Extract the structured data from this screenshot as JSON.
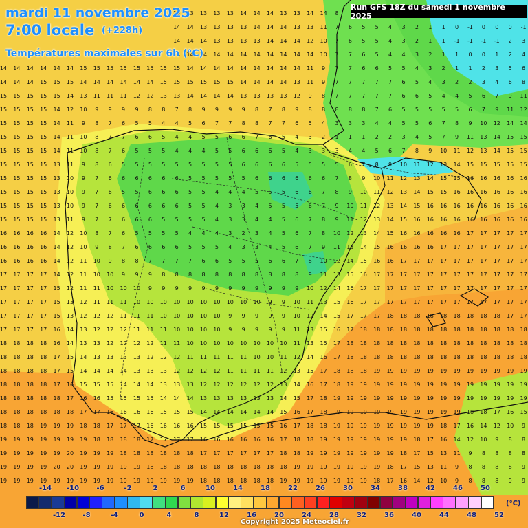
{
  "header": {
    "date": "mardi 11 novembre 2025",
    "time": "7:00 locale",
    "offset": "(+228h)",
    "parameter": "Températures maximales sur 6h (°C)",
    "run": "Run GFS 18Z du samedi 1 novembre 2025"
  },
  "legend": {
    "unit": "(°C)",
    "top_labels": [
      "-14",
      "-10",
      "-6",
      "-2",
      "2",
      "6",
      "10",
      "14",
      "18",
      "22",
      "26",
      "30",
      "34",
      "38",
      "42",
      "46",
      "50"
    ],
    "bottom_labels": [
      "-12",
      "-8",
      "-4",
      "0",
      "4",
      "8",
      "12",
      "16",
      "20",
      "24",
      "28",
      "32",
      "36",
      "40",
      "44",
      "48",
      "52"
    ],
    "colors": [
      "#0a1a4a",
      "#122a6e",
      "#1a3a96",
      "#0000a8",
      "#0000d8",
      "#2020ff",
      "#2068ff",
      "#1e8fff",
      "#30b8f0",
      "#50dcf0",
      "#40e080",
      "#30d850",
      "#80e040",
      "#b0e830",
      "#d8f020",
      "#ffff30",
      "#fff080",
      "#ffe060",
      "#ffc840",
      "#ffa830",
      "#ff8820",
      "#ff6020",
      "#ff4020",
      "#ff2020",
      "#e00000",
      "#c00010",
      "#a00010",
      "#800000",
      "#900040",
      "#a00080",
      "#c000c0",
      "#e020e0",
      "#ff40ff",
      "#ff70ff",
      "#ffa0ff",
      "#ffd0ff",
      "#ffffff"
    ]
  },
  "grid_rows": [
    [
      "14",
      "14",
      "14",
      "14",
      "14",
      "14",
      "14",
      "14",
      "14",
      "14",
      "14",
      "14",
      "14",
      "13",
      "13",
      "13",
      "13",
      "13",
      "14",
      "14",
      "14",
      "13",
      "13",
      "14",
      "14",
      "8",
      "6",
      "6",
      "5",
      "4",
      "4",
      "3",
      "2",
      "1",
      "0",
      "1",
      "1",
      "0",
      "1",
      "1"
    ],
    [
      "14",
      "14",
      "14",
      "14",
      "14",
      "14",
      "14",
      "14",
      "14",
      "14",
      "14",
      "14",
      "14",
      "14",
      "14",
      "13",
      "13",
      "13",
      "13",
      "14",
      "14",
      "14",
      "13",
      "13",
      "11",
      "7",
      "6",
      "5",
      "5",
      "4",
      "3",
      "2",
      "1",
      "1",
      "0",
      "-1",
      "0",
      "0",
      "0",
      "-1"
    ],
    [
      "14",
      "14",
      "14",
      "14",
      "14",
      "14",
      "14",
      "14",
      "14",
      "14",
      "14",
      "14",
      "14",
      "14",
      "14",
      "14",
      "13",
      "13",
      "13",
      "13",
      "14",
      "14",
      "14",
      "12",
      "10",
      "7",
      "6",
      "5",
      "5",
      "4",
      "3",
      "2",
      "1",
      "1",
      "-1",
      "-1",
      "-1",
      "-1",
      "2",
      "3"
    ],
    [
      "14",
      "14",
      "14",
      "14",
      "14",
      "14",
      "14",
      "14",
      "14",
      "14",
      "15",
      "15",
      "14",
      "14",
      "14",
      "14",
      "14",
      "14",
      "14",
      "14",
      "14",
      "14",
      "14",
      "14",
      "10",
      "7",
      "7",
      "6",
      "5",
      "4",
      "4",
      "3",
      "2",
      "1",
      "1",
      "0",
      "0",
      "1",
      "2",
      "4"
    ],
    [
      "14",
      "14",
      "14",
      "14",
      "14",
      "14",
      "15",
      "15",
      "15",
      "15",
      "15",
      "15",
      "15",
      "15",
      "14",
      "14",
      "14",
      "14",
      "14",
      "14",
      "14",
      "14",
      "14",
      "11",
      "9",
      "7",
      "7",
      "6",
      "6",
      "5",
      "5",
      "4",
      "3",
      "2",
      "1",
      "1",
      "2",
      "3",
      "5",
      "6"
    ],
    [
      "14",
      "14",
      "14",
      "15",
      "15",
      "15",
      "14",
      "14",
      "14",
      "14",
      "14",
      "14",
      "15",
      "15",
      "15",
      "15",
      "15",
      "15",
      "14",
      "14",
      "14",
      "14",
      "13",
      "11",
      "9",
      "7",
      "7",
      "7",
      "7",
      "7",
      "6",
      "5",
      "4",
      "3",
      "2",
      "2",
      "3",
      "4",
      "6",
      "8"
    ],
    [
      "15",
      "15",
      "15",
      "15",
      "15",
      "14",
      "13",
      "11",
      "11",
      "11",
      "12",
      "12",
      "13",
      "13",
      "14",
      "14",
      "14",
      "14",
      "13",
      "13",
      "13",
      "13",
      "12",
      "9",
      "8",
      "7",
      "7",
      "7",
      "7",
      "7",
      "6",
      "6",
      "5",
      "4",
      "4",
      "5",
      "6",
      "7",
      "9",
      "11"
    ],
    [
      "15",
      "15",
      "15",
      "15",
      "14",
      "12",
      "10",
      "9",
      "9",
      "9",
      "9",
      "8",
      "8",
      "7",
      "8",
      "9",
      "9",
      "9",
      "9",
      "8",
      "7",
      "8",
      "9",
      "8",
      "8",
      "8",
      "8",
      "8",
      "7",
      "6",
      "5",
      "5",
      "5",
      "5",
      "5",
      "6",
      "7",
      "9",
      "11",
      "12"
    ],
    [
      "15",
      "15",
      "15",
      "15",
      "14",
      "11",
      "9",
      "8",
      "7",
      "6",
      "5",
      "5",
      "4",
      "4",
      "5",
      "6",
      "7",
      "7",
      "8",
      "8",
      "7",
      "7",
      "6",
      "5",
      "4",
      "3",
      "3",
      "3",
      "4",
      "4",
      "5",
      "5",
      "6",
      "7",
      "8",
      "9",
      "10",
      "12",
      "14",
      "14"
    ],
    [
      "15",
      "15",
      "15",
      "15",
      "14",
      "11",
      "10",
      "8",
      "7",
      "7",
      "6",
      "6",
      "5",
      "4",
      "4",
      "5",
      "5",
      "6",
      "6",
      "7",
      "6",
      "5",
      "4",
      "3",
      "2",
      "1",
      "1",
      "1",
      "2",
      "2",
      "3",
      "4",
      "5",
      "7",
      "9",
      "11",
      "13",
      "14",
      "15",
      "15"
    ],
    [
      "15",
      "15",
      "15",
      "15",
      "14",
      "11",
      "10",
      "8",
      "7",
      "6",
      "5",
      "5",
      "5",
      "4",
      "4",
      "4",
      "5",
      "5",
      "6",
      "6",
      "6",
      "5",
      "4",
      "3",
      "3",
      "3",
      "4",
      "4",
      "5",
      "6",
      "7",
      "8",
      "9",
      "10",
      "11",
      "12",
      "13",
      "14",
      "15",
      "15"
    ],
    [
      "15",
      "15",
      "15",
      "15",
      "13",
      "11",
      "9",
      "8",
      "6",
      "5",
      "5",
      "5",
      "5",
      "5",
      "5",
      "5",
      "5",
      "5",
      "6",
      "6",
      "6",
      "6",
      "5",
      "5",
      "5",
      "5",
      "6",
      "7",
      "8",
      "9",
      "10",
      "11",
      "12",
      "13",
      "14",
      "15",
      "15",
      "15",
      "15",
      "15"
    ],
    [
      "15",
      "15",
      "15",
      "15",
      "13",
      "10",
      "9",
      "7",
      "6",
      "6",
      "6",
      "6",
      "6",
      "6",
      "5",
      "5",
      "5",
      "5",
      "5",
      "6",
      "6",
      "6",
      "6",
      "6",
      "6",
      "7",
      "8",
      "9",
      "10",
      "11",
      "12",
      "13",
      "14",
      "15",
      "15",
      "16",
      "16",
      "16",
      "16",
      "16"
    ],
    [
      "15",
      "15",
      "15",
      "15",
      "13",
      "10",
      "9",
      "7",
      "6",
      "5",
      "5",
      "6",
      "6",
      "6",
      "5",
      "5",
      "4",
      "4",
      "4",
      "5",
      "5",
      "5",
      "6",
      "6",
      "7",
      "8",
      "9",
      "10",
      "11",
      "12",
      "13",
      "14",
      "15",
      "15",
      "16",
      "16",
      "16",
      "16",
      "16",
      "16"
    ],
    [
      "15",
      "15",
      "15",
      "15",
      "13",
      "10",
      "9",
      "7",
      "6",
      "6",
      "6",
      "6",
      "6",
      "6",
      "5",
      "5",
      "4",
      "3",
      "3",
      "4",
      "5",
      "5",
      "5",
      "6",
      "7",
      "9",
      "10",
      "11",
      "12",
      "13",
      "14",
      "15",
      "16",
      "16",
      "16",
      "16",
      "16",
      "16",
      "16",
      "16"
    ],
    [
      "15",
      "15",
      "15",
      "15",
      "13",
      "11",
      "9",
      "7",
      "7",
      "6",
      "6",
      "6",
      "5",
      "5",
      "5",
      "5",
      "4",
      "3",
      "3",
      "4",
      "4",
      "5",
      "6",
      "7",
      "8",
      "9",
      "11",
      "12",
      "13",
      "14",
      "15",
      "16",
      "16",
      "16",
      "16",
      "16",
      "16",
      "16",
      "16",
      "16"
    ],
    [
      "16",
      "16",
      "16",
      "16",
      "14",
      "12",
      "10",
      "8",
      "7",
      "6",
      "5",
      "5",
      "5",
      "5",
      "4",
      "4",
      "4",
      "3",
      "2",
      "3",
      "4",
      "5",
      "6",
      "7",
      "8",
      "10",
      "12",
      "13",
      "14",
      "15",
      "16",
      "16",
      "16",
      "16",
      "16",
      "17",
      "17",
      "17",
      "17",
      "17"
    ],
    [
      "16",
      "16",
      "16",
      "16",
      "14",
      "12",
      "10",
      "9",
      "8",
      "7",
      "6",
      "6",
      "6",
      "6",
      "5",
      "5",
      "5",
      "4",
      "3",
      "3",
      "4",
      "5",
      "6",
      "7",
      "9",
      "11",
      "13",
      "14",
      "15",
      "16",
      "16",
      "16",
      "16",
      "17",
      "17",
      "17",
      "17",
      "17",
      "17",
      "17"
    ],
    [
      "16",
      "16",
      "16",
      "16",
      "14",
      "12",
      "11",
      "10",
      "9",
      "8",
      "8",
      "7",
      "7",
      "7",
      "7",
      "6",
      "6",
      "5",
      "5",
      "5",
      "6",
      "6",
      "7",
      "8",
      "10",
      "12",
      "14",
      "15",
      "16",
      "16",
      "17",
      "17",
      "17",
      "17",
      "17",
      "17",
      "17",
      "17",
      "17",
      "17"
    ],
    [
      "17",
      "17",
      "17",
      "17",
      "14",
      "12",
      "11",
      "10",
      "10",
      "9",
      "9",
      "9",
      "8",
      "8",
      "8",
      "8",
      "8",
      "8",
      "8",
      "8",
      "8",
      "8",
      "8",
      "9",
      "11",
      "13",
      "15",
      "16",
      "17",
      "17",
      "17",
      "17",
      "17",
      "17",
      "17",
      "17",
      "17",
      "17",
      "17",
      "17"
    ],
    [
      "17",
      "17",
      "17",
      "17",
      "15",
      "12",
      "11",
      "11",
      "10",
      "10",
      "10",
      "9",
      "9",
      "9",
      "9",
      "9",
      "9",
      "9",
      "9",
      "9",
      "9",
      "9",
      "9",
      "10",
      "12",
      "14",
      "16",
      "17",
      "17",
      "17",
      "17",
      "17",
      "17",
      "17",
      "17",
      "17",
      "17",
      "17",
      "17",
      "17"
    ],
    [
      "17",
      "17",
      "17",
      "17",
      "15",
      "13",
      "12",
      "11",
      "11",
      "11",
      "10",
      "10",
      "10",
      "10",
      "10",
      "10",
      "10",
      "10",
      "10",
      "10",
      "9",
      "9",
      "10",
      "11",
      "13",
      "15",
      "16",
      "17",
      "17",
      "17",
      "17",
      "17",
      "17",
      "17",
      "17",
      "17",
      "17",
      "17",
      "17",
      "17"
    ],
    [
      "17",
      "17",
      "17",
      "17",
      "15",
      "13",
      "12",
      "12",
      "12",
      "11",
      "11",
      "11",
      "10",
      "10",
      "10",
      "10",
      "10",
      "9",
      "9",
      "9",
      "9",
      "9",
      "10",
      "12",
      "14",
      "15",
      "17",
      "17",
      "17",
      "18",
      "18",
      "18",
      "18",
      "18",
      "18",
      "18",
      "18",
      "18",
      "17",
      "17"
    ],
    [
      "17",
      "17",
      "17",
      "17",
      "16",
      "14",
      "13",
      "12",
      "12",
      "12",
      "11",
      "11",
      "11",
      "10",
      "10",
      "10",
      "10",
      "9",
      "9",
      "9",
      "9",
      "9",
      "11",
      "13",
      "15",
      "16",
      "17",
      "18",
      "18",
      "18",
      "18",
      "18",
      "18",
      "18",
      "18",
      "18",
      "18",
      "18",
      "18",
      "18"
    ],
    [
      "18",
      "18",
      "18",
      "18",
      "16",
      "14",
      "13",
      "13",
      "12",
      "12",
      "12",
      "12",
      "11",
      "11",
      "10",
      "10",
      "10",
      "10",
      "10",
      "10",
      "10",
      "10",
      "11",
      "13",
      "15",
      "17",
      "18",
      "18",
      "18",
      "18",
      "18",
      "18",
      "18",
      "18",
      "18",
      "18",
      "18",
      "18",
      "18",
      "18"
    ],
    [
      "18",
      "18",
      "18",
      "18",
      "17",
      "15",
      "14",
      "13",
      "13",
      "13",
      "13",
      "12",
      "12",
      "12",
      "11",
      "11",
      "11",
      "11",
      "11",
      "10",
      "10",
      "11",
      "12",
      "14",
      "16",
      "17",
      "18",
      "18",
      "18",
      "18",
      "18",
      "18",
      "18",
      "18",
      "18",
      "18",
      "18",
      "18",
      "18",
      "18"
    ],
    [
      "18",
      "18",
      "18",
      "18",
      "17",
      "15",
      "14",
      "14",
      "14",
      "14",
      "13",
      "13",
      "13",
      "12",
      "12",
      "12",
      "12",
      "11",
      "11",
      "11",
      "11",
      "12",
      "13",
      "15",
      "17",
      "18",
      "18",
      "18",
      "19",
      "19",
      "19",
      "19",
      "19",
      "19",
      "19",
      "19",
      "19",
      "19",
      "19",
      "19"
    ],
    [
      "18",
      "18",
      "18",
      "18",
      "17",
      "16",
      "15",
      "15",
      "15",
      "14",
      "14",
      "14",
      "13",
      "13",
      "13",
      "12",
      "12",
      "12",
      "12",
      "12",
      "12",
      "13",
      "14",
      "16",
      "17",
      "18",
      "19",
      "19",
      "19",
      "19",
      "19",
      "19",
      "19",
      "19",
      "19",
      "19",
      "19",
      "19",
      "19",
      "19"
    ],
    [
      "18",
      "18",
      "18",
      "18",
      "18",
      "17",
      "16",
      "16",
      "15",
      "15",
      "15",
      "15",
      "14",
      "14",
      "14",
      "13",
      "13",
      "13",
      "13",
      "13",
      "13",
      "14",
      "15",
      "17",
      "18",
      "19",
      "19",
      "19",
      "19",
      "19",
      "19",
      "19",
      "19",
      "19",
      "19",
      "19",
      "19",
      "19",
      "19",
      "19"
    ],
    [
      "18",
      "18",
      "18",
      "18",
      "18",
      "18",
      "17",
      "17",
      "16",
      "16",
      "16",
      "16",
      "15",
      "15",
      "15",
      "14",
      "14",
      "14",
      "14",
      "14",
      "14",
      "15",
      "16",
      "17",
      "18",
      "19",
      "19",
      "19",
      "19",
      "19",
      "19",
      "19",
      "19",
      "19",
      "19",
      "18",
      "18",
      "17",
      "16",
      "15"
    ],
    [
      "18",
      "18",
      "18",
      "19",
      "19",
      "19",
      "18",
      "18",
      "17",
      "17",
      "17",
      "16",
      "16",
      "16",
      "16",
      "15",
      "15",
      "15",
      "15",
      "15",
      "15",
      "16",
      "17",
      "18",
      "18",
      "19",
      "19",
      "19",
      "19",
      "19",
      "19",
      "19",
      "19",
      "18",
      "17",
      "16",
      "14",
      "12",
      "10",
      "9"
    ],
    [
      "19",
      "19",
      "19",
      "19",
      "19",
      "19",
      "19",
      "18",
      "18",
      "18",
      "18",
      "17",
      "17",
      "17",
      "17",
      "16",
      "16",
      "16",
      "16",
      "16",
      "16",
      "17",
      "18",
      "18",
      "19",
      "19",
      "19",
      "19",
      "19",
      "19",
      "19",
      "18",
      "17",
      "16",
      "14",
      "12",
      "10",
      "9",
      "8",
      "8"
    ],
    [
      "19",
      "19",
      "19",
      "19",
      "19",
      "20",
      "19",
      "19",
      "19",
      "18",
      "18",
      "18",
      "18",
      "18",
      "18",
      "17",
      "17",
      "17",
      "17",
      "17",
      "17",
      "18",
      "18",
      "19",
      "19",
      "19",
      "19",
      "19",
      "19",
      "19",
      "18",
      "17",
      "15",
      "13",
      "11",
      "9",
      "8",
      "8",
      "8",
      "8"
    ],
    [
      "19",
      "19",
      "19",
      "19",
      "20",
      "20",
      "19",
      "19",
      "19",
      "19",
      "19",
      "18",
      "18",
      "18",
      "18",
      "18",
      "18",
      "18",
      "18",
      "18",
      "18",
      "18",
      "19",
      "19",
      "19",
      "19",
      "19",
      "19",
      "19",
      "18",
      "17",
      "15",
      "13",
      "11",
      "9",
      "8",
      "8",
      "8",
      "8",
      "9"
    ],
    [
      "19",
      "19",
      "19",
      "19",
      "19",
      "19",
      "19",
      "19",
      "19",
      "19",
      "19",
      "19",
      "19",
      "19",
      "19",
      "18",
      "18",
      "18",
      "18",
      "18",
      "18",
      "19",
      "19",
      "19",
      "19",
      "19",
      "19",
      "19",
      "18",
      "17",
      "16",
      "14",
      "12",
      "10",
      "9",
      "8",
      "8",
      "8",
      "9",
      "9"
    ],
    [
      "19",
      "19",
      "19",
      "19",
      "19",
      "19",
      "19",
      "19",
      "19",
      "19",
      "19",
      "19",
      "19",
      "19",
      "19",
      "19",
      "19",
      "19",
      "19",
      "19",
      "19",
      "19",
      "19",
      "19",
      "19",
      "19",
      "19",
      "18",
      "17",
      "16",
      "15",
      "13",
      "11",
      "10",
      "9",
      "8",
      "8",
      "9",
      "9",
      "9"
    ],
    [
      "19",
      "19",
      "19",
      "19",
      "19",
      "19",
      "19",
      "20",
      "20",
      "20",
      "19",
      "19",
      "19",
      "19",
      "19",
      "19",
      "19",
      "19",
      "19",
      "19",
      "19",
      "19",
      "19",
      "19",
      "19",
      "19",
      "18",
      "18",
      "17",
      "16",
      "14",
      "12",
      "10",
      "9",
      "9",
      "8",
      "9",
      "9",
      "9",
      "9"
    ],
    [
      "19",
      "19",
      "19",
      "19",
      "19",
      "19",
      "20",
      "20",
      "20",
      "20",
      "20",
      "19",
      "19",
      "19",
      "19",
      "19",
      "19",
      "19",
      "19",
      "19",
      "19",
      "19",
      "19",
      "19",
      "19",
      "19",
      "18",
      "17",
      "16",
      "15",
      "13",
      "11",
      "10",
      "9",
      "9",
      "9",
      "9",
      "9",
      "9",
      "9"
    ]
  ],
  "copyright": "Copyright 2025 Meteociel.fr"
}
